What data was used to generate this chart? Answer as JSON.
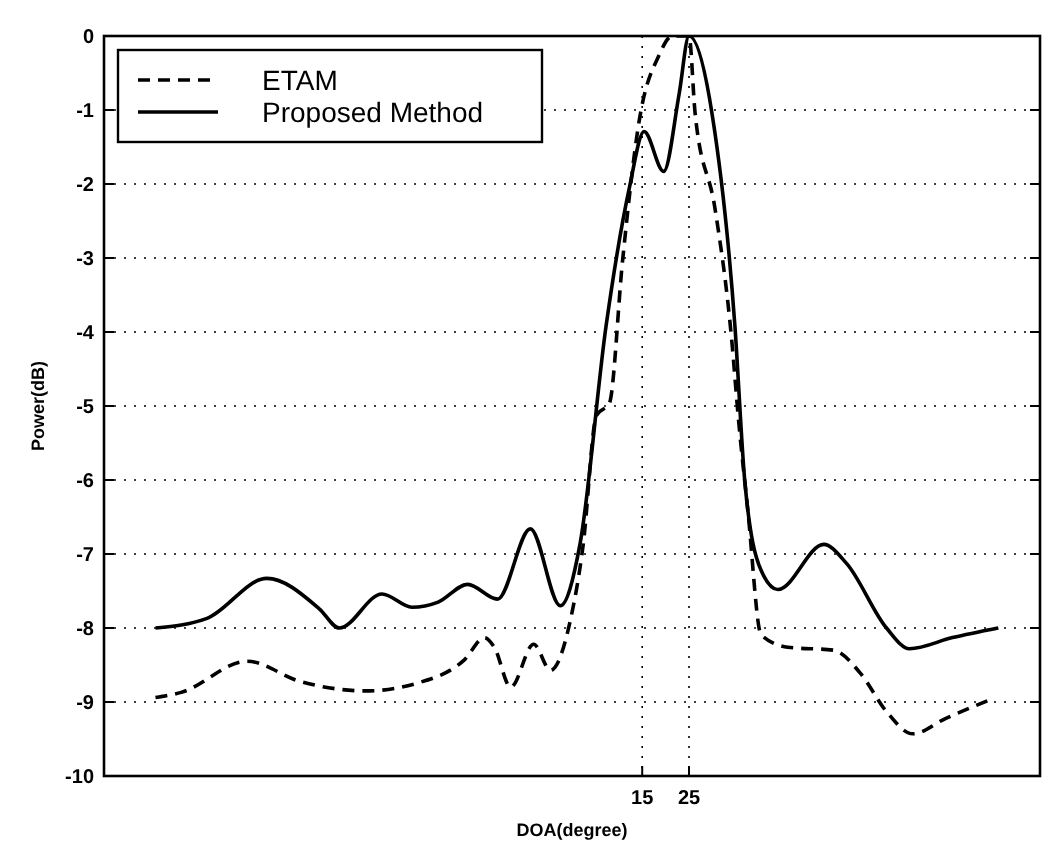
{
  "chart_data": {
    "type": "line",
    "xlabel": "DOA(degree)",
    "ylabel": "Power(dB)",
    "xlim": [
      -100,
      100
    ],
    "xticks": [
      15,
      25
    ],
    "ylim": [
      -10,
      0
    ],
    "yticks": [
      -10,
      -9,
      -8,
      -7,
      -6,
      -5,
      -4,
      -3,
      -2,
      -1,
      0
    ],
    "grid": true,
    "legend": "top left",
    "series": [
      {
        "name": "ETAM",
        "color": "#000000",
        "line_style": "dashed",
        "x": [
          -89,
          -83.5,
          -69.4,
          -58.2,
          -44.1,
          -32.8,
          -23,
          -18.7,
          -16.6,
          -13.1,
          -8.2,
          -4.6,
          -0.4,
          2.4,
          5.2,
          8,
          10.8,
          14.4,
          18.6,
          21.4,
          25,
          26.3,
          30.6,
          34.1,
          35.5,
          37.6,
          40.4,
          46.1,
          55.9,
          61.6,
          67.2,
          72.8,
          79.9,
          89.7
        ],
        "values": [
          -8.94,
          -8.87,
          -8.45,
          -8.72,
          -8.85,
          -8.74,
          -8.43,
          -8.13,
          -8.26,
          -8.8,
          -8.22,
          -8.57,
          -7.91,
          -6.87,
          -5.13,
          -4.96,
          -3.04,
          -1.13,
          -0.26,
          0,
          0,
          -1.04,
          -2.35,
          -4.09,
          -5.13,
          -6.43,
          -8.09,
          -8.26,
          -8.3,
          -8.61,
          -9.13,
          -9.43,
          -9.22,
          -8.96
        ]
      },
      {
        "name": "Proposed Method",
        "color": "#000000",
        "line_style": "solid",
        "x": [
          -89,
          -78,
          -65.2,
          -54,
          -49.7,
          -40.6,
          -34.2,
          -28.6,
          -22.3,
          -15.9,
          -8.9,
          -2.5,
          1.7,
          7.3,
          12.3,
          15.4,
          19.6,
          22.9,
          25,
          29.9,
          34.8,
          36.9,
          40.4,
          44,
          53.8,
          58.7,
          67.2,
          72.1,
          81.3,
          91.1
        ],
        "values": [
          -8.0,
          -7.87,
          -7.33,
          -7.74,
          -8.0,
          -7.54,
          -7.72,
          -7.65,
          -7.41,
          -7.61,
          -6.66,
          -7.7,
          -6.87,
          -3.91,
          -2.04,
          -1.29,
          -1.83,
          -0.78,
          0,
          -1.04,
          -3.91,
          -6.0,
          -7.22,
          -7.48,
          -6.87,
          -7.13,
          -8.0,
          -8.28,
          -8.13,
          -8.0
        ]
      }
    ]
  }
}
